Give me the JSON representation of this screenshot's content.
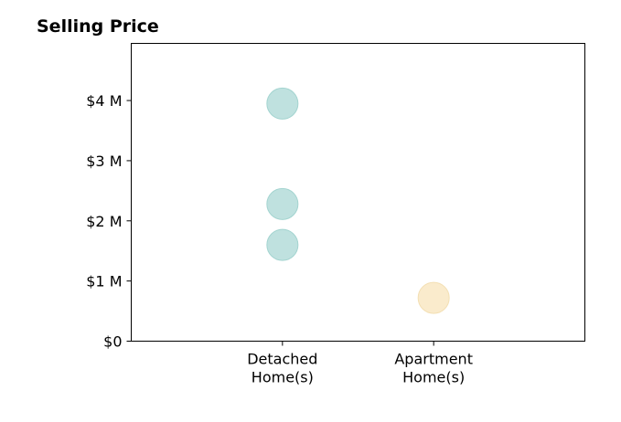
{
  "chart_data": {
    "type": "scatter",
    "title": "Selling Price",
    "xlabel": "",
    "ylabel": "",
    "categories": [
      {
        "lines": [
          "Detached",
          "Home(s)"
        ]
      },
      {
        "lines": [
          "Apartment",
          "Home(s)"
        ]
      }
    ],
    "xlim": [
      -1,
      2
    ],
    "ylim": [
      0,
      4950000
    ],
    "yticks": [
      {
        "value": 0,
        "label": "$0"
      },
      {
        "value": 1000000,
        "label": "$1 M"
      },
      {
        "value": 2000000,
        "label": "$2 M"
      },
      {
        "value": 3000000,
        "label": "$3 M"
      },
      {
        "value": 4000000,
        "label": "$4 M"
      }
    ],
    "series": [
      {
        "color": "#bfe1df",
        "stroke": "#a3d4d0",
        "points": [
          {
            "category": 0,
            "value": 3950000
          },
          {
            "category": 0,
            "value": 2280000
          },
          {
            "category": 0,
            "value": 1600000
          }
        ]
      },
      {
        "color": "#faebcc",
        "stroke": "#f3dfb3",
        "points": [
          {
            "category": 1,
            "value": 720000
          }
        ]
      }
    ],
    "grid": false,
    "legend": "none"
  }
}
